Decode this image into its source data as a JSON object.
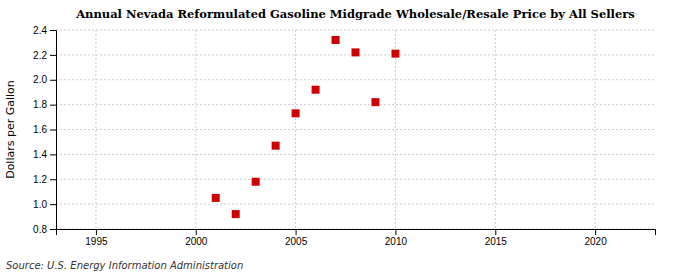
{
  "chart_data": {
    "type": "scatter",
    "title": "Annual Nevada Reformulated Gasoline Midgrade Wholesale/Resale Price by All Sellers",
    "ylabel": "Dollars per Gallon",
    "annotation": "Source: U.S. Energy Information Administration",
    "x": [
      2001,
      2002,
      2003,
      2004,
      2005,
      2006,
      2007,
      2008,
      2009,
      2010
    ],
    "values": [
      1.05,
      0.92,
      1.18,
      1.47,
      1.73,
      1.92,
      2.32,
      2.22,
      1.82,
      2.21
    ],
    "color": "#cc0000",
    "marker": "square",
    "xlim": [
      1993,
      2023
    ],
    "ylim": [
      0.8,
      2.4
    ],
    "xticks": [
      1995,
      2000,
      2005,
      2010,
      2015,
      2020
    ],
    "yticks": [
      0.8,
      {
        "value": 1,
        "label": "1.0"
      },
      1.2,
      1.4,
      1.6,
      1.8,
      {
        "value": 2,
        "label": "2.0"
      },
      2.2,
      2.4
    ],
    "grid": true
  }
}
